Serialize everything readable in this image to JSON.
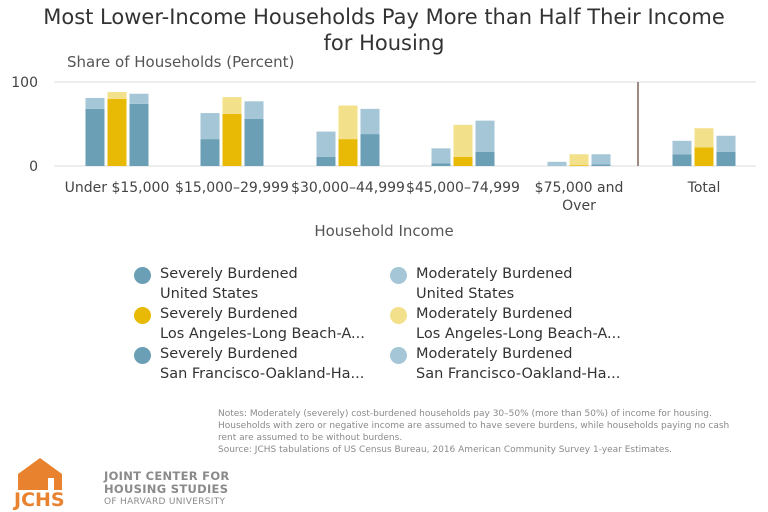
{
  "title": "Most Lower-Income Households Pay More than Half Their Income for Housing",
  "y_axis_title": "Share of Households (Percent)",
  "x_axis_title": "Household Income",
  "legend": [
    {
      "line1": "Severely Burdened",
      "line2": "United States",
      "color": "#6a9fb5"
    },
    {
      "line1": "Moderately Burdened",
      "line2": "United States",
      "color": "#a4c6d6"
    },
    {
      "line1": "Severely Burdened",
      "line2": "Los Angeles-Long Beach-A...",
      "color": "#e8b905"
    },
    {
      "line1": "Moderately Burdened",
      "line2": "Los Angeles-Long Beach-A...",
      "color": "#f3e08a"
    },
    {
      "line1": "Severely Burdened",
      "line2": "San Francisco-Oakland-Ha...",
      "color": "#6a9fb5"
    },
    {
      "line1": "Moderately Burdened",
      "line2": "San Francisco-Oakland-Ha...",
      "color": "#a4c6d6"
    }
  ],
  "notes": {
    "line1": "Notes: Moderately (severely) cost-burdened households pay 30–50% (more than 50%) of income for housing. Households with zero or negative income are assumed to have severe burdens, while households paying no cash rent are assumed to be without burdens.",
    "line2": "Source: JCHS tabulations of US Census Bureau, 2016 American Community Survey 1-year Estimates."
  },
  "logo": {
    "mark": "JCHS",
    "line1": "JOINT CENTER FOR",
    "line2": "HOUSING STUDIES",
    "line3": "OF HARVARD UNIVERSITY",
    "color": "#e8822e"
  },
  "chart_data": {
    "type": "bar",
    "stacked": true,
    "categories": [
      "Under $15,000",
      "$15,000–29,999",
      "$30,000–44,999",
      "$45,000–74,999",
      "$75,000 and Over",
      "Total"
    ],
    "yticks": [
      0,
      100
    ],
    "ylim": [
      0,
      100
    ],
    "groups": [
      {
        "name": "United States",
        "severe_color": "#6a9fb5",
        "moderate_color": "#a4c6d6",
        "severe": [
          68,
          32,
          11,
          3,
          0,
          14
        ],
        "moderate": [
          13,
          31,
          30,
          18,
          5,
          16
        ]
      },
      {
        "name": "Los Angeles-Long Beach-A...",
        "severe_color": "#e8b905",
        "moderate_color": "#f3e08a",
        "severe": [
          80,
          62,
          32,
          11,
          1,
          22
        ],
        "moderate": [
          8,
          20,
          40,
          38,
          13,
          23
        ]
      },
      {
        "name": "San Francisco-Oakland-Ha...",
        "severe_color": "#6a9fb5",
        "moderate_color": "#a4c6d6",
        "severe": [
          74,
          56,
          38,
          17,
          2,
          17
        ],
        "moderate": [
          12,
          21,
          30,
          37,
          12,
          19
        ]
      }
    ],
    "separator_before_index": 5,
    "separator_color": "#9e8a80"
  }
}
